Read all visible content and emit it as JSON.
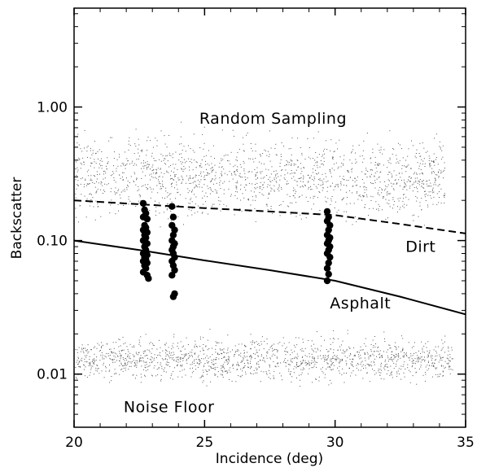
{
  "chart_data": {
    "type": "scatter",
    "title": "",
    "xlabel": "Incidence (deg)",
    "ylabel": "Backscatter",
    "xlim": [
      20,
      35
    ],
    "ylim": [
      0.004,
      5.5
    ],
    "yscale": "log",
    "x_ticks": [
      20,
      25,
      30,
      35
    ],
    "x_tick_labels": [
      "20",
      "25",
      "30",
      "35"
    ],
    "y_ticks": [
      0.01,
      0.1,
      1.0
    ],
    "y_tick_labels": [
      "0.01",
      "0.10",
      "1.00"
    ],
    "grid": false,
    "legend": "none",
    "annotations": [
      {
        "text": "Random Sampling",
        "x": 24.8,
        "y": 0.75
      },
      {
        "text": "Dirt",
        "x": 32.7,
        "y": 0.082
      },
      {
        "text": "Asphalt",
        "x": 29.8,
        "y": 0.031
      },
      {
        "text": "Noise Floor",
        "x": 21.9,
        "y": 0.0052
      }
    ],
    "series": [
      {
        "kind": "line",
        "style": "dashed",
        "x": [
          20,
          22.5,
          25,
          27.5,
          30,
          32.5,
          35
        ],
        "y": [
          0.2,
          0.187,
          0.175,
          0.165,
          0.155,
          0.133,
          0.113
        ]
      },
      {
        "kind": "line",
        "style": "solid",
        "x": [
          20,
          22.5,
          25,
          27.5,
          30,
          32.5,
          35
        ],
        "y": [
          0.1,
          0.085,
          0.071,
          0.06,
          0.05,
          0.038,
          0.028
        ]
      },
      {
        "kind": "scatter",
        "marker": "large-dot",
        "points": [
          [
            22.65,
            0.19
          ],
          [
            22.7,
            0.17
          ],
          [
            22.75,
            0.16
          ],
          [
            22.65,
            0.15
          ],
          [
            22.8,
            0.145
          ],
          [
            22.7,
            0.13
          ],
          [
            22.75,
            0.125
          ],
          [
            22.65,
            0.12
          ],
          [
            22.8,
            0.115
          ],
          [
            22.7,
            0.11
          ],
          [
            22.75,
            0.105
          ],
          [
            22.65,
            0.1
          ],
          [
            22.8,
            0.095
          ],
          [
            22.7,
            0.09
          ],
          [
            22.75,
            0.085
          ],
          [
            22.65,
            0.08
          ],
          [
            22.8,
            0.078
          ],
          [
            22.7,
            0.075
          ],
          [
            22.75,
            0.072
          ],
          [
            22.65,
            0.07
          ],
          [
            22.8,
            0.068
          ],
          [
            22.7,
            0.065
          ],
          [
            22.75,
            0.062
          ],
          [
            22.65,
            0.058
          ],
          [
            22.8,
            0.055
          ],
          [
            22.85,
            0.052
          ],
          [
            23.75,
            0.18
          ],
          [
            23.8,
            0.15
          ],
          [
            23.75,
            0.13
          ],
          [
            23.85,
            0.12
          ],
          [
            23.8,
            0.11
          ],
          [
            23.75,
            0.1
          ],
          [
            23.85,
            0.095
          ],
          [
            23.8,
            0.09
          ],
          [
            23.75,
            0.085
          ],
          [
            23.8,
            0.08
          ],
          [
            23.85,
            0.075
          ],
          [
            23.75,
            0.07
          ],
          [
            23.8,
            0.065
          ],
          [
            23.85,
            0.06
          ],
          [
            23.75,
            0.055
          ],
          [
            23.85,
            0.04
          ],
          [
            23.8,
            0.038
          ],
          [
            29.7,
            0.165
          ],
          [
            29.75,
            0.15
          ],
          [
            29.7,
            0.14
          ],
          [
            29.8,
            0.13
          ],
          [
            29.75,
            0.12
          ],
          [
            29.7,
            0.11
          ],
          [
            29.8,
            0.105
          ],
          [
            29.75,
            0.1
          ],
          [
            29.7,
            0.095
          ],
          [
            29.8,
            0.09
          ],
          [
            29.75,
            0.085
          ],
          [
            29.7,
            0.08
          ],
          [
            29.8,
            0.075
          ],
          [
            29.75,
            0.068
          ],
          [
            29.7,
            0.062
          ],
          [
            29.75,
            0.056
          ],
          [
            29.7,
            0.05
          ]
        ]
      },
      {
        "kind": "scatter",
        "marker": "fine-dot",
        "region": "random-sampling",
        "x_range": [
          20,
          34.2
        ],
        "y_center": 0.3,
        "y_spread_decades": 0.28,
        "count": 1600
      },
      {
        "kind": "scatter",
        "marker": "fine-dot",
        "region": "noise-floor",
        "x_range": [
          20,
          34.5
        ],
        "y_center": 0.013,
        "y_spread_decades": 0.15,
        "count": 1500
      }
    ]
  }
}
